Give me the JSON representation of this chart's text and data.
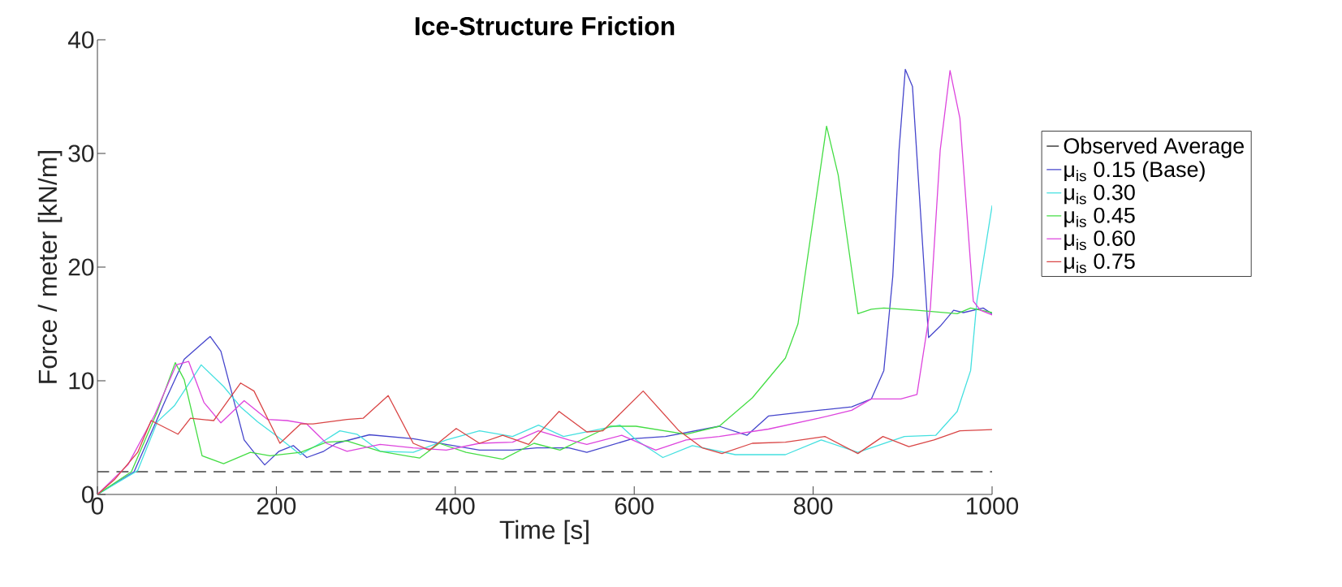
{
  "chart_data": {
    "type": "line",
    "title": "Ice-Structure Friction",
    "xlabel": "Time [s]",
    "ylabel": "Force / meter [kN/m]",
    "xlim": [
      0,
      1000
    ],
    "ylim": [
      0,
      40
    ],
    "xticks": [
      0,
      200,
      400,
      600,
      800,
      1000
    ],
    "yticks": [
      0,
      10,
      20,
      30,
      40
    ],
    "legend": "right",
    "ref_lines": [
      {
        "axis": "y",
        "value": 2,
        "label": "Observed Average",
        "color": "#404040",
        "line_style": "dashed"
      }
    ],
    "series": [
      {
        "name": "μ$_{is}$ 0.15 (Base)",
        "color": "#4545cc",
        "x": [
          0,
          41,
          75,
          97,
          126,
          138,
          153,
          164,
          175,
          187,
          203,
          219,
          234,
          253,
          267,
          304,
          353,
          390,
          427,
          464,
          491,
          527,
          547,
          598,
          635,
          695,
          726,
          750,
          806,
          843,
          865,
          879,
          889,
          896,
          903,
          911,
          920,
          929,
          942,
          957,
          968,
          990,
          1000
        ],
        "values": [
          0,
          2,
          8.1,
          11.9,
          13.9,
          12.6,
          8.1,
          4.8,
          3.7,
          2.6,
          3.8,
          4.3,
          3.25,
          3.8,
          4.5,
          5.25,
          4.9,
          4.4,
          3.9,
          3.9,
          4.1,
          4.1,
          3.7,
          4.9,
          5.1,
          6.0,
          5.2,
          6.9,
          7.4,
          7.7,
          8.4,
          10.9,
          19.2,
          30.3,
          37.4,
          35.9,
          24.8,
          13.8,
          14.8,
          16.2,
          16,
          16.4,
          15.9
        ]
      },
      {
        "name": "μ$_{is}$ 0.30",
        "color": "#44e0e0",
        "x": [
          0,
          45,
          67,
          86,
          116,
          141,
          160,
          179,
          201,
          227,
          249,
          271,
          290,
          316,
          353,
          390,
          427,
          464,
          493,
          521,
          584,
          602,
          632,
          665,
          713,
          769,
          809,
          850,
          902,
          937,
          961,
          976,
          983,
          1000
        ],
        "values": [
          0,
          2.1,
          6.4,
          7.8,
          11.4,
          9.5,
          7.7,
          6.4,
          5.1,
          3.5,
          4.5,
          5.6,
          5.3,
          3.8,
          3.7,
          4.8,
          5.6,
          5.1,
          6.1,
          5.1,
          6.1,
          4.8,
          3.25,
          4.3,
          3.5,
          3.5,
          4.8,
          3.7,
          5.1,
          5.2,
          7.3,
          10.9,
          17,
          25.4
        ]
      },
      {
        "name": "μ$_{is}$ 0.45",
        "color": "#44dd44",
        "x": [
          0,
          38,
          67,
          87,
          97,
          117,
          141,
          171,
          193,
          227,
          256,
          279,
          316,
          360,
          382,
          412,
          453,
          488,
          517,
          573,
          602,
          658,
          695,
          732,
          769,
          783,
          802,
          815,
          828,
          839,
          850,
          865,
          879,
          916,
          961,
          976,
          1000
        ],
        "values": [
          0,
          2,
          7.3,
          11.6,
          10.1,
          3.4,
          2.7,
          3.7,
          3.4,
          3.7,
          4.6,
          4.7,
          3.8,
          3.2,
          4.5,
          3.7,
          3.1,
          4.5,
          3.9,
          6,
          6,
          5.3,
          6,
          8.5,
          12,
          15,
          25.3,
          32.4,
          28.1,
          22,
          15.9,
          16.3,
          16.4,
          16.2,
          15.9,
          16.4,
          16
        ]
      },
      {
        "name": "μ$_{is}$ 0.60",
        "color": "#dd44dd",
        "x": [
          0,
          34,
          64,
          88,
          102,
          119,
          138,
          164,
          190,
          212,
          234,
          256,
          279,
          316,
          353,
          390,
          427,
          464,
          493,
          527,
          547,
          586,
          624,
          658,
          695,
          750,
          806,
          843,
          865,
          898,
          916,
          931,
          942,
          953,
          964,
          979,
          987,
          1000
        ],
        "values": [
          0,
          2.6,
          7,
          11.4,
          11.7,
          8.1,
          6.3,
          8.25,
          6.6,
          6.5,
          6.2,
          4.5,
          3.8,
          4.4,
          4.1,
          3.9,
          4.5,
          4.6,
          5.6,
          4.8,
          4.4,
          5.2,
          3.9,
          4.8,
          5.1,
          5.75,
          6.7,
          7.4,
          8.4,
          8.4,
          8.8,
          16.4,
          30.3,
          37.3,
          33.1,
          17,
          16.2,
          15.8
        ]
      },
      {
        "name": "μ$_{is}$ 0.75",
        "color": "#d94545",
        "x": [
          0,
          19,
          45,
          60,
          90,
          104,
          130,
          160,
          175,
          204,
          227,
          241,
          279,
          297,
          325,
          353,
          371,
          401,
          427,
          453,
          482,
          516,
          547,
          565,
          610,
          650,
          676,
          698,
          732,
          769,
          813,
          850,
          878,
          907,
          935,
          964,
          1000
        ],
        "values": [
          0,
          1.3,
          3.7,
          6.5,
          5.3,
          6.7,
          6.5,
          9.8,
          9.1,
          4.5,
          6.2,
          6.2,
          6.6,
          6.7,
          8.7,
          4.5,
          3.9,
          5.8,
          4.5,
          5.2,
          4.4,
          7.3,
          5.5,
          5.6,
          9.1,
          5.6,
          4.1,
          3.6,
          4.5,
          4.6,
          5.1,
          3.6,
          5.1,
          4.2,
          4.8,
          5.6,
          5.7
        ]
      }
    ]
  }
}
